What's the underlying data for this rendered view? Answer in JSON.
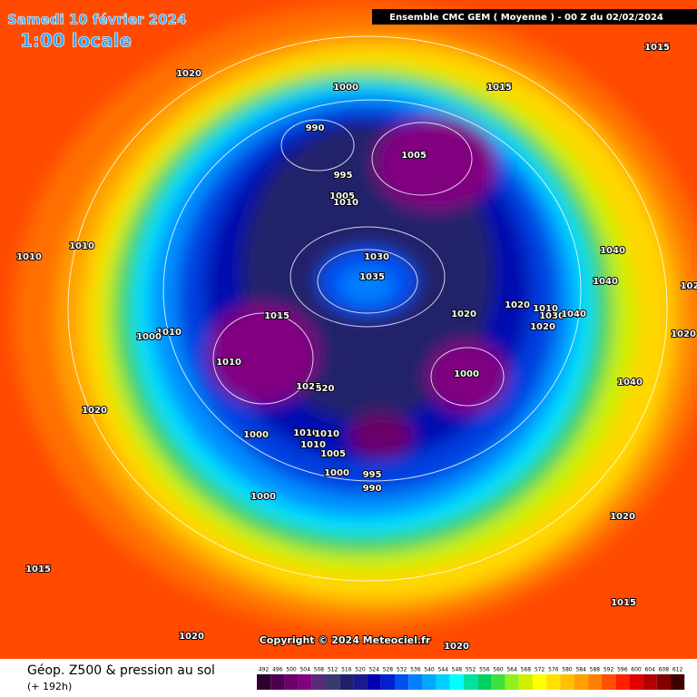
{
  "header": {
    "date": "Samedi 10 février 2024",
    "local_time": "1:00 locale",
    "model": "Ensemble CMC GEM  ( Moyenne )  -  00 Z du 02/02/2024"
  },
  "map": {
    "copyright": "Copyright © 2024 Meteociel.fr",
    "isobar_labels": [
      "1020",
      "1000",
      "1015",
      "1015",
      "990",
      "1005",
      "995",
      "1005",
      "1010",
      "1010",
      "1010",
      "1040",
      "1030",
      "1035",
      "1040",
      "102",
      "1020",
      "1015",
      "1020",
      "1010",
      "1030",
      "1040",
      "1020",
      "1010",
      "1000",
      "1020",
      "1010",
      "1000",
      "1025",
      "520",
      "1040",
      "1020",
      "1010",
      "1010",
      "1000",
      "1010",
      "1005",
      "1000",
      "995",
      "990",
      "1000",
      "1020",
      "1015",
      "1015",
      "1020",
      "1020"
    ]
  },
  "footer": {
    "title": "Géop. Z500 & pression au sol",
    "lead": "(+ 192h)"
  },
  "scale": {
    "labels": [
      492,
      496,
      500,
      504,
      508,
      512,
      516,
      520,
      524,
      528,
      532,
      536,
      540,
      544,
      548,
      552,
      556,
      560,
      564,
      568,
      572,
      576,
      580,
      584,
      588,
      592,
      596,
      600,
      604,
      608,
      612
    ],
    "colors": [
      "#2d0030",
      "#4b0050",
      "#6b006b",
      "#800080",
      "#5a2a7a",
      "#3a3a70",
      "#20206a",
      "#1a1a90",
      "#0000b0",
      "#0020d0",
      "#0050f0",
      "#0080ff",
      "#00a8ff",
      "#00d0ff",
      "#00ffff",
      "#00e0a0",
      "#00d060",
      "#40e040",
      "#90f020",
      "#d0f000",
      "#ffff00",
      "#ffe000",
      "#ffc000",
      "#ffa000",
      "#ff8000",
      "#ff5000",
      "#ff2000",
      "#e00000",
      "#b00000",
      "#800000",
      "#400000"
    ]
  }
}
